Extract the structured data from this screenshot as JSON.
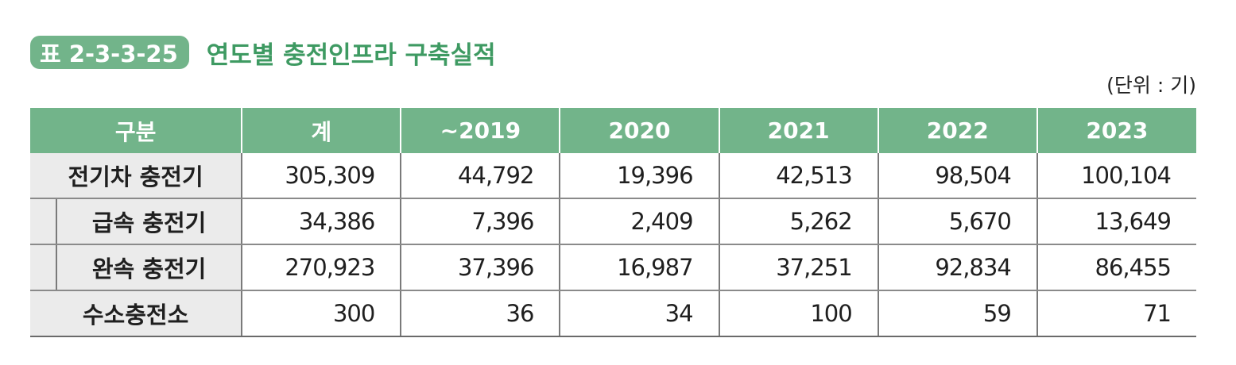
{
  "caption": {
    "badge": "표 2-3-3-25",
    "title": "연도별 충전인프라 구축실적"
  },
  "unit": "(단위 : 기)",
  "table": {
    "headers": [
      "구분",
      "계",
      "~2019",
      "2020",
      "2021",
      "2022",
      "2023"
    ],
    "rows": [
      {
        "label": "전기차 충전기",
        "values": [
          "305,309",
          "44,792",
          "19,396",
          "42,513",
          "98,504",
          "100,104"
        ]
      },
      {
        "label": "급속 충전기",
        "values": [
          "34,386",
          "7,396",
          "2,409",
          "5,262",
          "5,670",
          "13,649"
        ]
      },
      {
        "label": "완속 충전기",
        "values": [
          "270,923",
          "37,396",
          "16,987",
          "37,251",
          "92,834",
          "86,455"
        ]
      },
      {
        "label": "수소충전소",
        "values": [
          "300",
          "36",
          "34",
          "100",
          "59",
          "71"
        ]
      }
    ]
  },
  "colors": {
    "header_bg": "#72b48a",
    "caption_title": "#3e9a62",
    "label_bg": "#ebebeb"
  }
}
